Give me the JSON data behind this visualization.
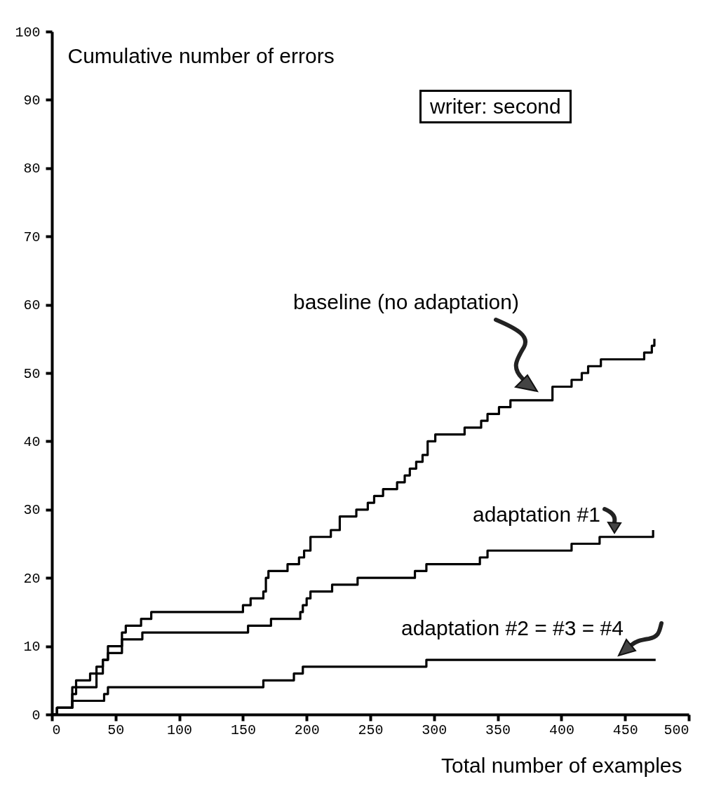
{
  "chart_data": {
    "type": "step",
    "xlabel": "Total number of examples",
    "ylabel": "Cumulative number of errors",
    "annotations": [
      "writer: second"
    ],
    "series": [
      {
        "name": "baseline (no adaptation)",
        "color": "#000000",
        "x": [
          0,
          4,
          16,
          19,
          30,
          35,
          40,
          44,
          55,
          58,
          70,
          78,
          150,
          156,
          166,
          168,
          170,
          185,
          194,
          198,
          203,
          219,
          226,
          239,
          248,
          253,
          260,
          271,
          277,
          281,
          286,
          291,
          295,
          301,
          324,
          337,
          342,
          351,
          360,
          393,
          408,
          416,
          421,
          431,
          465,
          471,
          473
        ],
        "values": [
          0,
          1,
          3,
          5,
          6,
          7,
          8,
          10,
          12,
          13,
          14,
          15,
          16,
          17,
          18,
          20,
          21,
          22,
          23,
          24,
          26,
          27,
          29,
          30,
          31,
          32,
          33,
          34,
          35,
          36,
          37,
          38,
          40,
          41,
          42,
          43,
          44,
          45,
          46,
          48,
          49,
          50,
          51,
          52,
          53,
          54,
          55
        ]
      },
      {
        "name": "adaptation #1",
        "color": "#000000",
        "x": [
          0,
          4,
          16,
          35,
          40,
          44,
          55,
          71,
          154,
          172,
          195,
          197,
          200,
          203,
          220,
          240,
          285,
          294,
          336,
          342,
          408,
          430,
          472
        ],
        "values": [
          0,
          1,
          4,
          6,
          8,
          9,
          11,
          12,
          13,
          14,
          15,
          16,
          17,
          18,
          19,
          20,
          21,
          22,
          23,
          24,
          25,
          26,
          27
        ]
      },
      {
        "name": "adaptation #2 = #3 = #4",
        "color": "#000000",
        "x": [
          0,
          4,
          16,
          41,
          44,
          166,
          190,
          197,
          294,
          474
        ],
        "values": [
          0,
          1,
          2,
          3,
          4,
          5,
          6,
          7,
          8,
          8
        ]
      }
    ],
    "xlim": [
      0,
      500
    ],
    "xticks": [
      0,
      50,
      100,
      150,
      200,
      250,
      300,
      350,
      400,
      450,
      500
    ],
    "ylim": [
      0,
      100
    ],
    "yticks": [
      0,
      10,
      20,
      30,
      40,
      50,
      60,
      70,
      80,
      90,
      100
    ],
    "grid": false,
    "legend": false,
    "marker": "none",
    "line_style": "solid"
  }
}
